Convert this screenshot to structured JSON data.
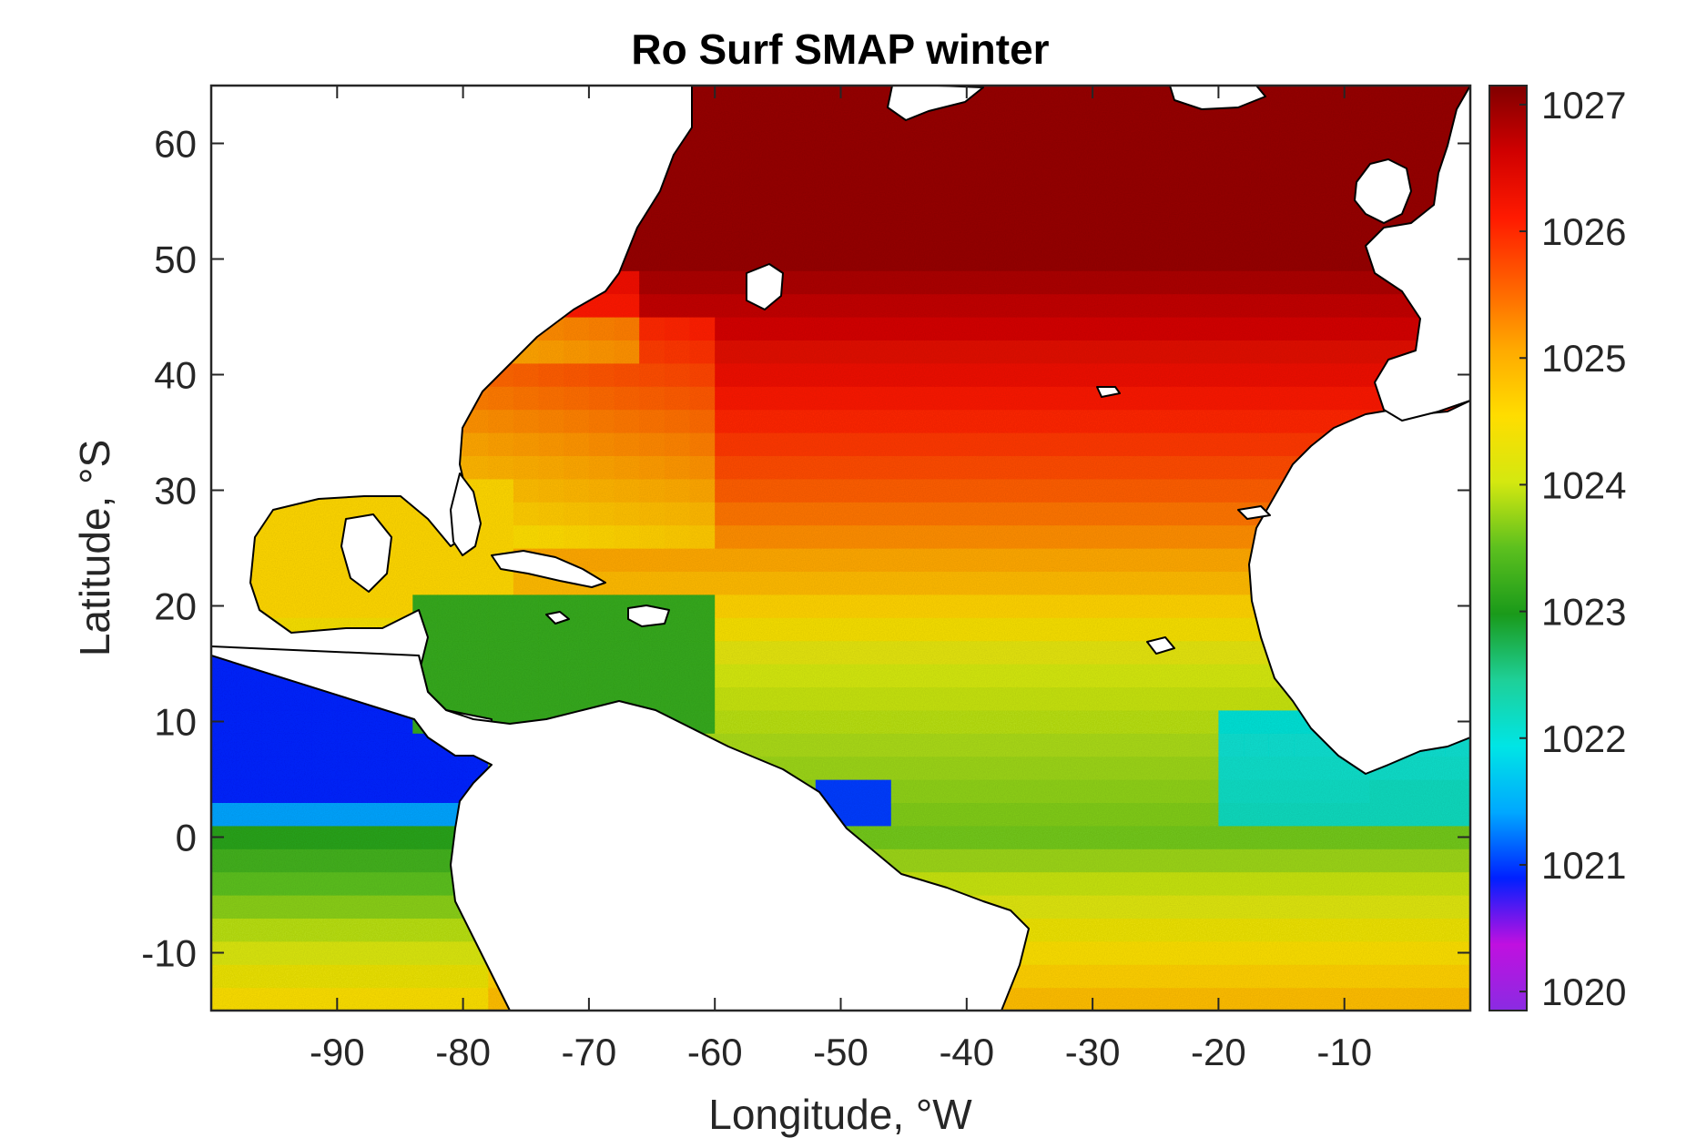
{
  "chart_data": {
    "type": "heatmap",
    "title": "Ro Surf SMAP winter",
    "xlabel": "Longitude, °W",
    "ylabel": "Latitude, °S",
    "xlim": [
      -100,
      0
    ],
    "ylim": [
      -15,
      65
    ],
    "xticks": [
      -90,
      -80,
      -70,
      -60,
      -50,
      -40,
      -30,
      -20,
      -10
    ],
    "xtick_labels": [
      "-90",
      "-80",
      "-70",
      "-60",
      "-50",
      "-40",
      "-30",
      "-20",
      "-10"
    ],
    "yticks": [
      -10,
      0,
      10,
      20,
      30,
      40,
      50,
      60
    ],
    "ytick_labels": [
      "-10",
      "0",
      "10",
      "20",
      "30",
      "40",
      "50",
      "60"
    ],
    "colorbar": {
      "clim": [
        1019.85,
        1027.15
      ],
      "ticks": [
        1020,
        1021,
        1022,
        1023,
        1024,
        1025,
        1026,
        1027
      ],
      "tick_labels": [
        "1020",
        "1021",
        "1022",
        "1023",
        "1024",
        "1025",
        "1026",
        "1027"
      ],
      "colormap": [
        "#8a2be2",
        "#c010e0",
        "#0020ff",
        "#00a8ff",
        "#00e5e5",
        "#1ed098",
        "#1a9a1a",
        "#5cc01e",
        "#d4e810",
        "#ffdd00",
        "#ffaa00",
        "#ff6000",
        "#ff1a00",
        "#d00000",
        "#800000"
      ]
    },
    "grid": false,
    "land_color": "#ffffff",
    "coastline_color": "#000000"
  }
}
